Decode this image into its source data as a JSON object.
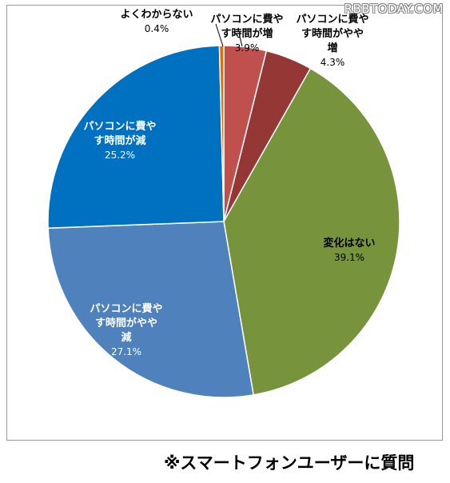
{
  "watermark": "RBBTODAY.COM",
  "footnote": "※スマートフォンユーザーに質問",
  "chart_data": {
    "type": "pie",
    "title": "",
    "legend": "none",
    "start_angle_deg": 0,
    "direction": "clockwise",
    "slices": [
      {
        "label_lines": [
          "パソコンに費や",
          "す時間が増"
        ],
        "value": 3.9,
        "value_label": "3.9%",
        "color": "#c0504d"
      },
      {
        "label_lines": [
          "パソコンに費や",
          "す時間がやや",
          "増"
        ],
        "value": 4.3,
        "value_label": "4.3%",
        "color": "#953735"
      },
      {
        "label_lines": [
          "変化はない"
        ],
        "value": 39.1,
        "value_label": "39.1%",
        "color": "#77933c"
      },
      {
        "label_lines": [
          "パソコンに費や",
          "す時間がやや",
          "減"
        ],
        "value": 27.1,
        "value_label": "27.1%",
        "color": "#4f81bd"
      },
      {
        "label_lines": [
          "パソコンに費や",
          "す時間が減"
        ],
        "value": 25.2,
        "value_label": "25.2%",
        "color": "#0070c0"
      },
      {
        "label_lines": [
          "よくわからない"
        ],
        "value": 0.4,
        "value_label": "0.4%",
        "color": "#e46c0a"
      }
    ]
  }
}
